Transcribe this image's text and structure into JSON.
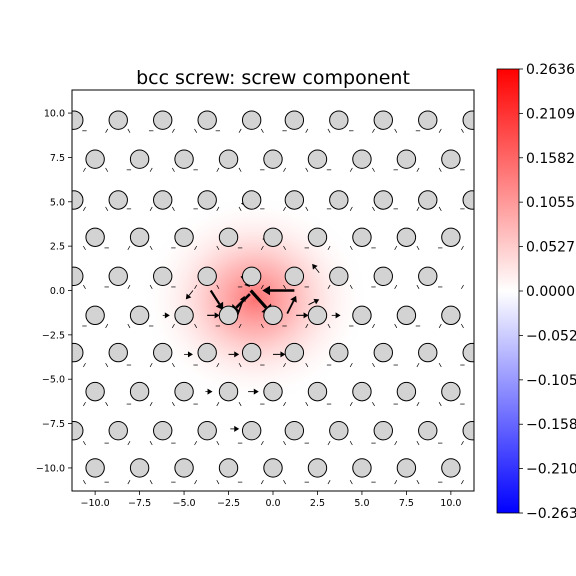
{
  "chart_data": {
    "type": "scatter",
    "title": "bcc screw: screw component",
    "xlabel": "",
    "ylabel": "",
    "xlim": [
      -11.3,
      11.3
    ],
    "ylim": [
      -11.3,
      11.3
    ],
    "xticks": [
      -10.0,
      -7.5,
      -5.0,
      -2.5,
      0.0,
      2.5,
      5.0,
      7.5,
      10.0
    ],
    "xtick_labels": [
      "−10.0",
      "−7.5",
      "−5.0",
      "−2.5",
      "0.0",
      "2.5",
      "5.0",
      "7.5",
      "10.0"
    ],
    "yticks": [
      -10.0,
      -7.5,
      -5.0,
      -2.5,
      0.0,
      2.5,
      5.0,
      7.5,
      10.0
    ],
    "ytick_labels": [
      "−10.0",
      "−7.5",
      "−5.0",
      "−2.5",
      "0.0",
      "2.5",
      "5.0",
      "7.5",
      "10.0"
    ],
    "grid": false,
    "atoms": {
      "rows": [
        {
          "y": 10.0,
          "x0": -10.0,
          "dx": 2.5,
          "count": 9
        },
        {
          "y": 7.5,
          "x0": -10.0,
          "dx": 2.5,
          "count": 9
        },
        {
          "y": 5.0,
          "x0": -10.0,
          "dx": 2.5,
          "count": 9
        },
        {
          "y": 2.5,
          "x0": -10.0,
          "dx": 2.5,
          "count": 9
        },
        {
          "y": 0.0,
          "x0": -10.0,
          "dx": 2.5,
          "count": 9
        },
        {
          "y": -2.5,
          "x0": -10.0,
          "dx": 2.5,
          "count": 9
        },
        {
          "y": -5.0,
          "x0": -10.0,
          "dx": 2.5,
          "count": 9
        },
        {
          "y": -7.5,
          "x0": -10.0,
          "dx": 2.5,
          "count": 9
        },
        {
          "y": -10.0,
          "x0": -10.0,
          "dx": 2.5,
          "count": 9
        }
      ],
      "colors": {
        "fill": "#d3d3d3",
        "edge": "#000000"
      }
    },
    "arrows": [
      {
        "from": [
          -1.25,
          0.0
        ],
        "to": [
          0.0,
          -1.4
        ],
        "width": 3.2
      },
      {
        "from": [
          -1.3,
          -0.2
        ],
        "to": [
          -2.4,
          -1.3
        ],
        "width": 2.6
      },
      {
        "from": [
          -3.5,
          0.0
        ],
        "to": [
          -2.8,
          -1.1
        ],
        "width": 2.2
      },
      {
        "from": [
          1.2,
          0.0
        ],
        "to": [
          -0.6,
          0.0
        ],
        "width": 2.4
      },
      {
        "from": [
          0.8,
          -1.3
        ],
        "to": [
          1.3,
          -0.3
        ],
        "width": 1.8
      },
      {
        "from": [
          -2.0,
          -1.4
        ],
        "to": [
          -1.6,
          -0.3
        ],
        "width": 1.6
      },
      {
        "from": [
          -1.8,
          0.8
        ],
        "to": [
          -1.3,
          0.2
        ],
        "width": 1.2
      },
      {
        "from": [
          2.0,
          -0.8
        ],
        "to": [
          2.6,
          -0.5
        ],
        "width": 1.0
      },
      {
        "from": [
          -3.7,
          -1.4
        ],
        "to": [
          -3.0,
          -1.4
        ],
        "width": 1.2
      },
      {
        "from": [
          1.3,
          -1.4
        ],
        "to": [
          2.0,
          -1.4
        ],
        "width": 1.1
      },
      {
        "from": [
          -2.5,
          -3.6
        ],
        "to": [
          -1.9,
          -3.6
        ],
        "width": 1.0
      },
      {
        "from": [
          0.0,
          -3.6
        ],
        "to": [
          0.7,
          -3.6
        ],
        "width": 1.0
      },
      {
        "from": [
          -1.4,
          -5.7
        ],
        "to": [
          -0.8,
          -5.7
        ],
        "width": 0.9
      },
      {
        "from": [
          -2.4,
          -7.8
        ],
        "to": [
          -1.9,
          -7.8
        ],
        "width": 0.8
      },
      {
        "from": [
          -5.0,
          -3.6
        ],
        "to": [
          -4.5,
          -3.6
        ],
        "width": 0.8
      },
      {
        "from": [
          -3.8,
          -5.7
        ],
        "to": [
          -3.4,
          -5.7
        ],
        "width": 0.7
      },
      {
        "from": [
          -4.5,
          0.0
        ],
        "to": [
          -4.9,
          -0.5
        ],
        "width": 0.9
      },
      {
        "from": [
          2.6,
          1.0
        ],
        "to": [
          2.2,
          1.5
        ],
        "width": 0.8
      },
      {
        "from": [
          -2.5,
          2.9
        ],
        "to": [
          -3.0,
          2.9
        ],
        "width": 0.8
      },
      {
        "from": [
          0.0,
          2.9
        ],
        "to": [
          -0.6,
          2.9
        ],
        "width": 0.8
      },
      {
        "from": [
          -1.4,
          4.9
        ],
        "to": [
          -1.8,
          4.9
        ],
        "width": 0.7
      },
      {
        "from": [
          3.3,
          -1.4
        ],
        "to": [
          3.8,
          -1.4
        ],
        "width": 0.8
      },
      {
        "from": [
          -6.2,
          -1.4
        ],
        "to": [
          -5.8,
          -1.4
        ],
        "width": 0.8
      }
    ],
    "background_field": {
      "center": [
        -1.0,
        -0.5
      ],
      "peak": 0.2636
    },
    "colorbar": {
      "vmin": -0.2636,
      "vmax": 0.2636,
      "cmap": "bwr",
      "tick_values": [
        0.2636,
        0.2109,
        0.1582,
        0.1055,
        0.0527,
        0.0,
        -0.0527,
        -0.1055,
        -0.1582,
        -0.2109,
        -0.2636
      ],
      "tick_labels": [
        "0.2636",
        "0.2109",
        "0.1582",
        "0.1055",
        "0.0527",
        "0.0000",
        "−0.0527",
        "−0.1055",
        "−0.1582",
        "−0.2109",
        "−0.2636"
      ],
      "colors": {
        "top": "#ff0000",
        "mid": "#ffffff",
        "bottom": "#0000ff"
      }
    }
  }
}
